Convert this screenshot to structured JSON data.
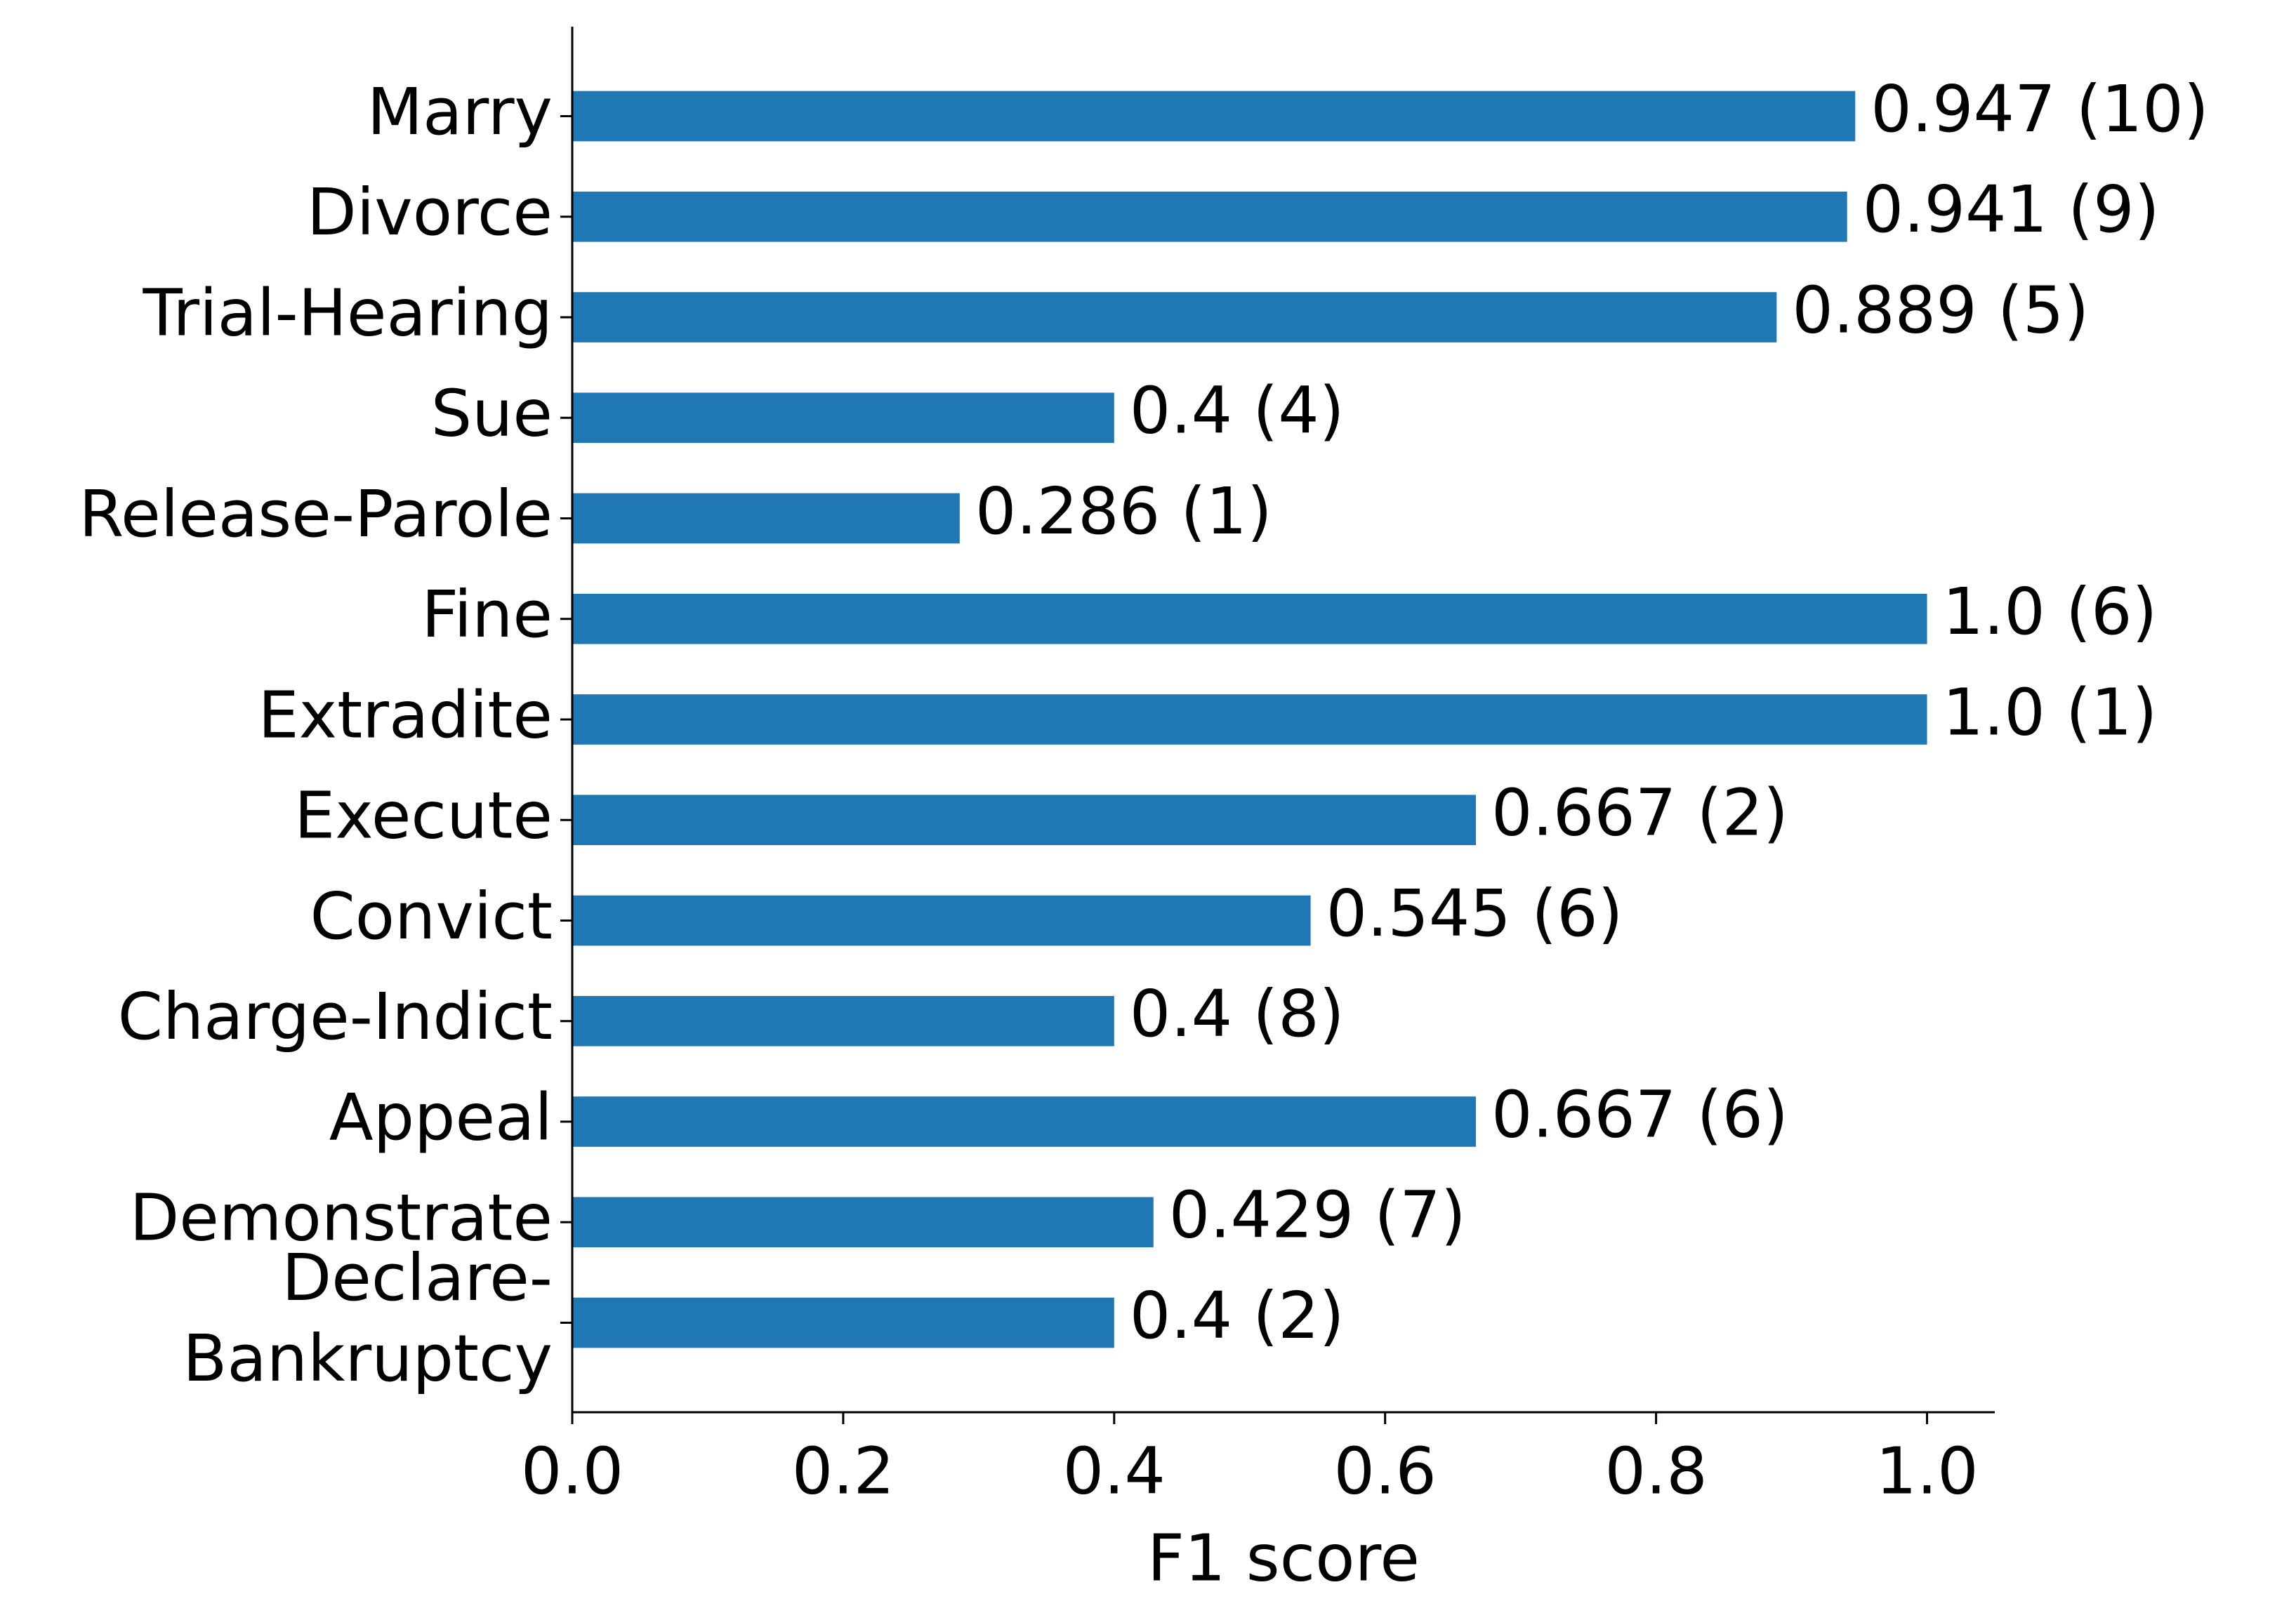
{
  "chart_data": {
    "type": "barh",
    "xlabel": "F1 score",
    "categories": [
      "Marry",
      "Divorce",
      "Trial-Hearing",
      "Sue",
      "Release-Parole",
      "Fine",
      "Extradite",
      "Execute",
      "Convict",
      "Charge-Indict",
      "Appeal",
      "Demonstrate",
      "Declare-\nBankruptcy"
    ],
    "values": [
      0.947,
      0.941,
      0.889,
      0.4,
      0.286,
      1.0,
      1.0,
      0.667,
      0.545,
      0.4,
      0.667,
      0.429,
      0.4
    ],
    "value_labels": [
      "0.947 (10)",
      "0.941 (9)",
      "0.889 (5)",
      "0.4 (4)",
      "0.286 (1)",
      "1.0 (6)",
      "1.0 (1)",
      "0.667 (2)",
      "0.545 (6)",
      "0.4 (8)",
      "0.667 (6)",
      "0.429 (7)",
      "0.4 (2)"
    ],
    "color": "#1f77b4",
    "xlim": [
      0,
      1.05
    ],
    "xticks": [
      {
        "value": 0,
        "label": "0.0"
      },
      0.2,
      0.4,
      0.6,
      0.8,
      {
        "value": 1,
        "label": "1.0"
      }
    ],
    "grid": false
  }
}
